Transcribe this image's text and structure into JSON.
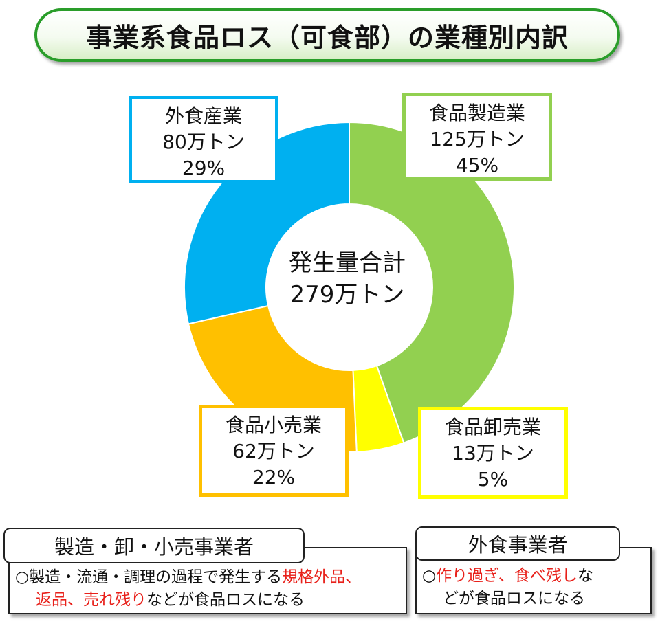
{
  "title": "事業系食品ロス（可食部）の業種別内訳",
  "center": {
    "line1": "発生量合計",
    "line2": "279万トン"
  },
  "colors": {
    "food_manufacturing": "#92d050",
    "food_wholesale": "#ffff00",
    "food_retail": "#ffc000",
    "food_service": "#00b0f0",
    "emphasis": "#e8201a"
  },
  "chart_data": {
    "type": "pie",
    "variant": "donut",
    "title": "事業系食品ロス（可食部）の業種別内訳",
    "total": 279,
    "unit": "万トン",
    "slices": [
      {
        "name": "食品製造業",
        "value": 125,
        "percent": 45,
        "amount": "125万トン",
        "pct_label": "45%",
        "color": "#92d050"
      },
      {
        "name": "食品卸売業",
        "value": 13,
        "percent": 5,
        "amount": "13万トン",
        "pct_label": "5%",
        "color": "#ffff00"
      },
      {
        "name": "食品小売業",
        "value": 62,
        "percent": 22,
        "amount": "62万トン",
        "pct_label": "22%",
        "color": "#ffc000"
      },
      {
        "name": "外食産業",
        "value": 80,
        "percent": 29,
        "amount": "80万トン",
        "pct_label": "29%",
        "color": "#00b0f0"
      }
    ]
  },
  "notes": {
    "business": {
      "heading": "製造・卸・小売事業者",
      "prefix": "○製造・流通・調理の過程で発生する",
      "highlight1": "規格外品、",
      "highlight2": "返品、売れ残り",
      "suffix": "などが食品ロスになる"
    },
    "food_service": {
      "heading": "外食事業者",
      "prefix": "○",
      "highlight": "作り過ぎ、食べ残し",
      "suffix1": "な",
      "suffix2": "どが食品ロスになる"
    }
  }
}
